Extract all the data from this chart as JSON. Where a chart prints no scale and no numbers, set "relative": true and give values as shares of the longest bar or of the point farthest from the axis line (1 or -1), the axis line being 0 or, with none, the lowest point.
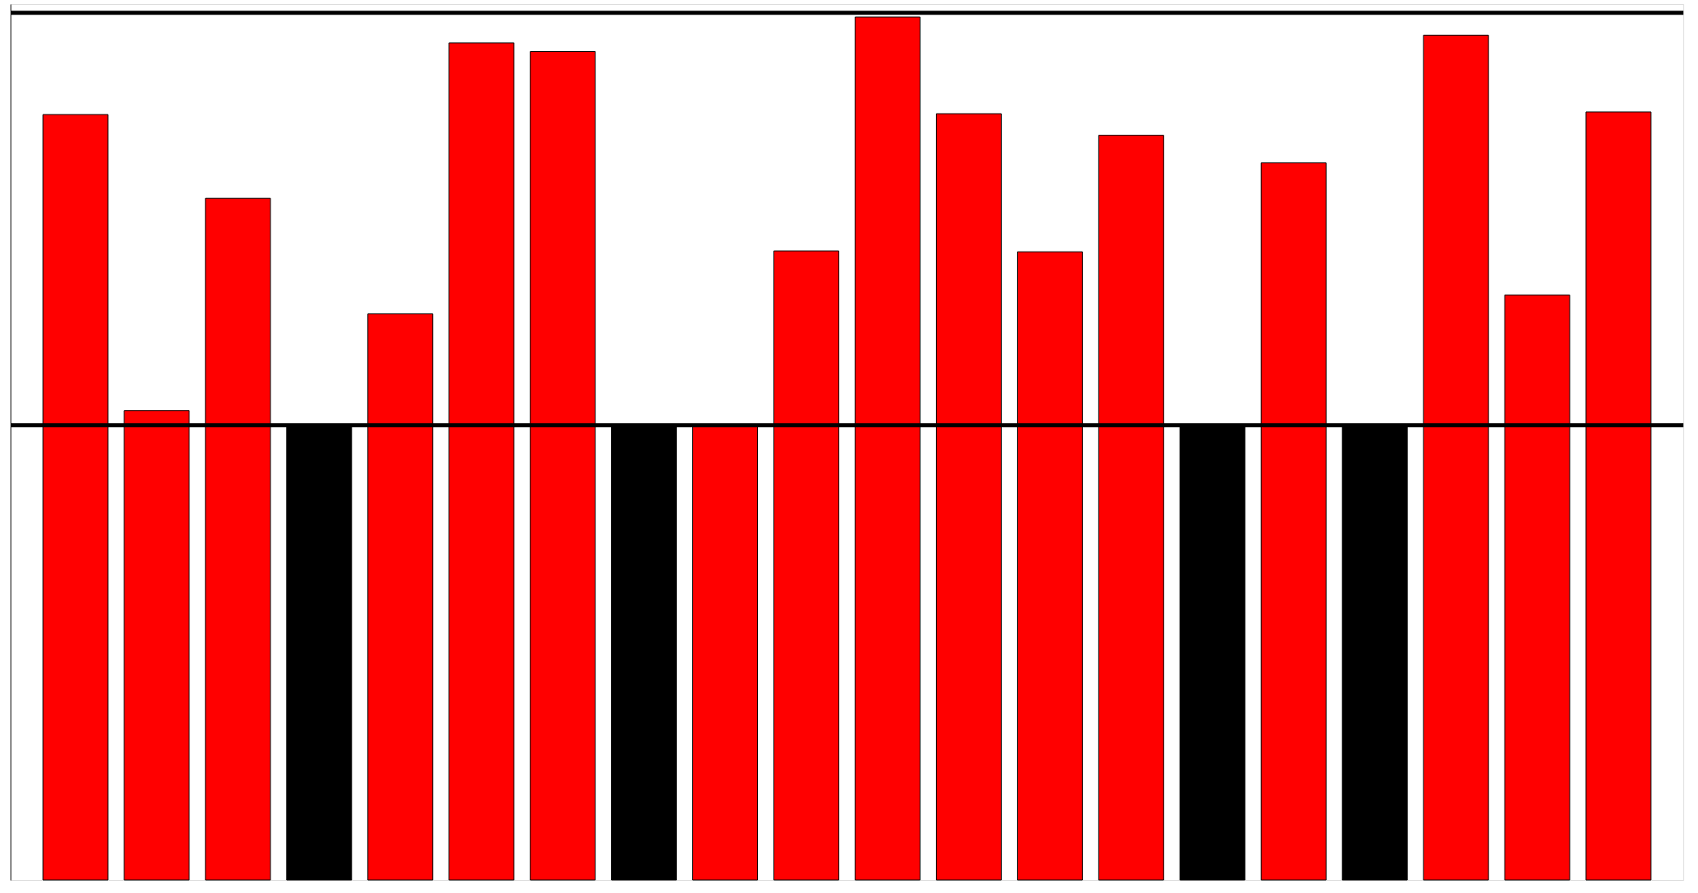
{
  "chart_data": {
    "type": "bar",
    "relative": true,
    "categories": [
      null,
      null,
      null,
      null,
      null,
      null,
      null,
      null,
      null,
      null,
      null,
      null,
      null,
      null,
      null,
      null,
      null,
      null,
      null,
      null
    ],
    "values": [
      0.887,
      0.544,
      0.79,
      0.527,
      0.656,
      0.97,
      0.96,
      0.527,
      0.527,
      0.729,
      1.0,
      0.888,
      0.728,
      0.863,
      0.527,
      0.831,
      0.527,
      0.979,
      0.678,
      0.89
    ],
    "colors": [
      "#ff0000",
      "#ff0000",
      "#ff0000",
      "#000000",
      "#ff0000",
      "#ff0000",
      "#ff0000",
      "#000000",
      "#ff0000",
      "#ff0000",
      "#ff0000",
      "#ff0000",
      "#ff0000",
      "#ff0000",
      "#000000",
      "#ff0000",
      "#000000",
      "#ff0000",
      "#ff0000",
      "#ff0000"
    ],
    "ref_lines": [
      {
        "axis": "y",
        "value": 1.005,
        "color": "#000000",
        "line_style": "solid"
      },
      {
        "axis": "y",
        "value": 0.527,
        "color": "#000000",
        "line_style": "solid"
      }
    ],
    "grid": false
  }
}
